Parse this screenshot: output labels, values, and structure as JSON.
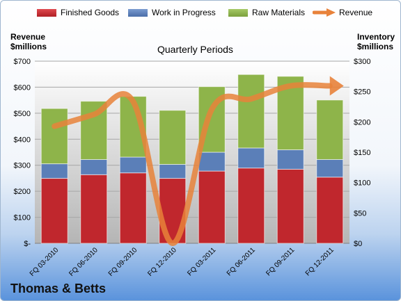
{
  "brand": "Thomas & Betts",
  "chart_data": {
    "type": "bar",
    "stacked": true,
    "title": "Quarterly Periods",
    "left_axis_title_line1": "Revenue",
    "left_axis_title_line2": "$millions",
    "right_axis_title_line1": "Inventory",
    "right_axis_title_line2": "$millions",
    "categories": [
      "FQ 03-2010",
      "FQ 06-2010",
      "FQ 09-2010",
      "FQ 12-2010",
      "FQ 03-2011",
      "FQ 06-2011",
      "FQ 09-2011",
      "FQ 12-2011"
    ],
    "y_left_ticks": [
      "$-",
      "$100",
      "$200",
      "$300",
      "$400",
      "$500",
      "$600",
      "$700"
    ],
    "y_right_ticks": [
      "$0",
      "$50",
      "$100",
      "$150",
      "$200",
      "$250",
      "$300"
    ],
    "ylim_left": [
      0,
      700
    ],
    "ylim_right": [
      0,
      300
    ],
    "grid": true,
    "legend_position": "top",
    "series": [
      {
        "name": "Finished Goods",
        "kind": "bar",
        "axis": "right",
        "color": "#c0272d",
        "values": [
          107,
          113,
          116,
          107,
          119,
          124,
          122,
          109
        ]
      },
      {
        "name": "Work in Progress",
        "kind": "bar",
        "axis": "right",
        "color": "#5b7fb8",
        "values": [
          24,
          25,
          26,
          23,
          31,
          33,
          32,
          29
        ]
      },
      {
        "name": "Raw Materials",
        "kind": "bar",
        "axis": "right",
        "color": "#8eb44a",
        "values": [
          91,
          96,
          100,
          89,
          108,
          121,
          121,
          98
        ]
      },
      {
        "name": "Revenue",
        "kind": "line",
        "axis": "left",
        "color": "#e8823a",
        "values": [
          450,
          495,
          545,
          0,
          515,
          555,
          605,
          605
        ]
      }
    ]
  }
}
